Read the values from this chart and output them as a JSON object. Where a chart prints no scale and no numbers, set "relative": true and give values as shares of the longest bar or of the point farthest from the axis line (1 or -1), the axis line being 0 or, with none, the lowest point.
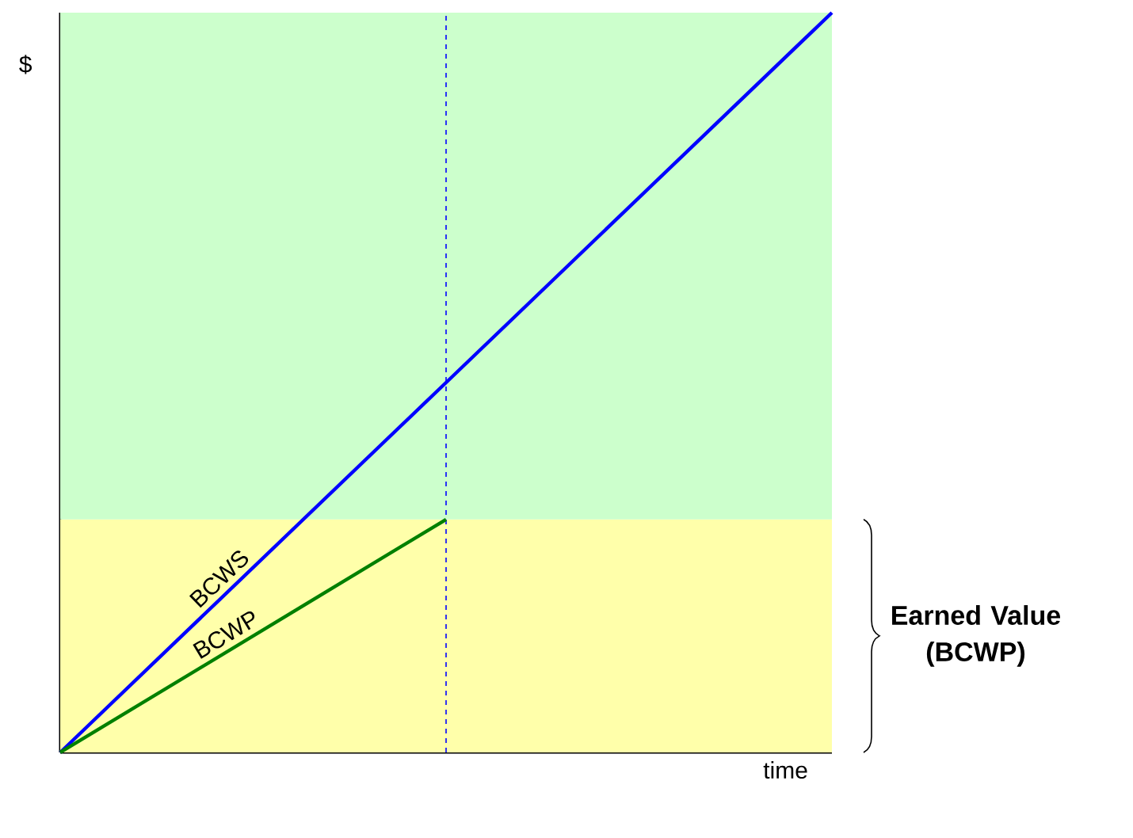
{
  "chart_data": {
    "type": "line",
    "relative": true,
    "xlabel": "time",
    "ylabel": "$",
    "categories": [
      null,
      null,
      null
    ],
    "series": [
      {
        "name": "BCWS",
        "color": "#0000ff",
        "values": [
          0,
          0.5,
          1
        ]
      },
      {
        "name": "BCWP",
        "color": "#008000",
        "values": [
          0,
          0.315,
          null
        ]
      }
    ],
    "bands": [
      {
        "axis": "y",
        "from": 0,
        "to": 0.315,
        "color": "#ffffaa"
      },
      {
        "axis": "y",
        "from": 0.315,
        "to": 1,
        "color": "#ccffcc"
      }
    ],
    "annotations": [
      "Earned Value (BCWP)"
    ]
  }
}
